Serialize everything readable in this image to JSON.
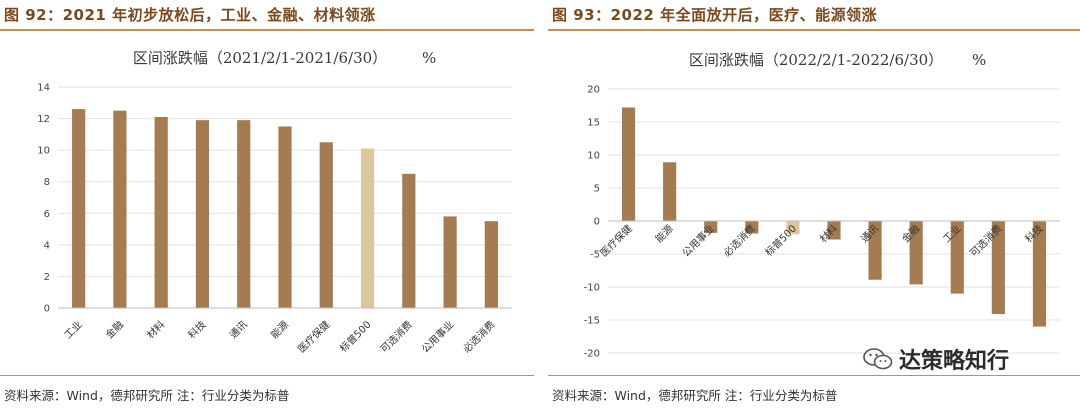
{
  "figures": [
    {
      "figure_title": "图 92：2021 年初步放松后，工业、金融、材料领涨",
      "source": "资料来源：Wind，德邦研究所  注：行业分类为标普",
      "chart_data": {
        "type": "bar",
        "title": "区间涨跌幅（2021/2/1-2021/6/30）",
        "unit": "%",
        "categories": [
          "工业",
          "金融",
          "材料",
          "科技",
          "通讯",
          "能源",
          "医疗保健",
          "标普500",
          "可选消费",
          "公用事业",
          "必选消费"
        ],
        "values": [
          12.6,
          12.5,
          12.1,
          11.9,
          11.9,
          11.5,
          10.5,
          10.1,
          8.5,
          5.8,
          5.5
        ],
        "highlight_index": 7,
        "ylim": [
          0,
          14
        ],
        "yticks": [
          0,
          2,
          4,
          6,
          8,
          10,
          12,
          14
        ],
        "grid": true,
        "bar_color": "#a57c52",
        "highlight_color": "#dcc79c",
        "grid_color": "#e2e2e2"
      }
    },
    {
      "figure_title": "图 93：2022 年全面放开后，医疗、能源领涨",
      "source": "资料来源：Wind，德邦研究所  注：行业分类为标普",
      "chart_data": {
        "type": "bar",
        "title": "区间涨跌幅（2022/2/1-2022/6/30）",
        "unit": "%",
        "categories": [
          "医疗保健",
          "能源",
          "公用事业",
          "必选消费",
          "标普500",
          "材料",
          "通讯",
          "金融",
          "工业",
          "可选消费",
          "科技"
        ],
        "values": [
          17.2,
          8.9,
          -1.8,
          -1.9,
          -2.0,
          -2.8,
          -8.9,
          -9.6,
          -11.0,
          -14.1,
          -16.0
        ],
        "highlight_index": 4,
        "ylim": [
          -20,
          20
        ],
        "yticks": [
          -20,
          -15,
          -10,
          -5,
          0,
          5,
          10,
          15,
          20
        ],
        "grid": true,
        "bar_color": "#a57c52",
        "highlight_color": "#dcc79c",
        "grid_color": "#e2e2e2"
      }
    }
  ],
  "watermark": {
    "text": "达策略知行",
    "icon": "wechat-icon"
  }
}
